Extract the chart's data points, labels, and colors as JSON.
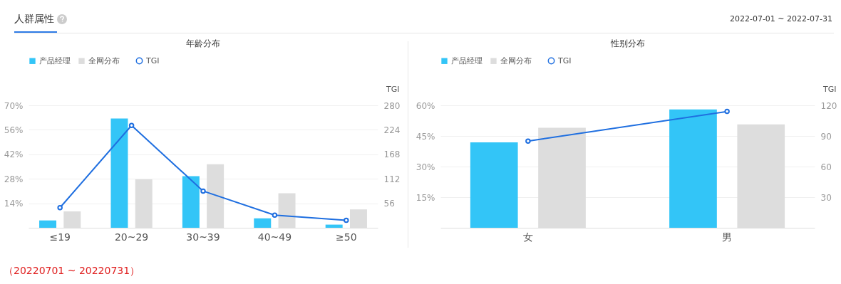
{
  "chart_data": [
    {
      "type": "bar",
      "title": "年龄分布",
      "categories": [
        "≤19",
        "20~29",
        "30~39",
        "40~49",
        "≥50"
      ],
      "series": [
        {
          "name": "产品经理",
          "color": "#33c5f7",
          "values": [
            4.2,
            62.5,
            29.5,
            5.4,
            1.8
          ]
        },
        {
          "name": "全网分布",
          "color": "#dddddd",
          "values": [
            9.4,
            27.7,
            36.3,
            19.7,
            10.5
          ]
        },
        {
          "name": "TGI",
          "type": "line",
          "axis": "y2",
          "color": "#1f6fe0",
          "values": [
            46,
            234,
            84,
            29,
            17
          ]
        }
      ],
      "ylim": [
        0,
        70
      ],
      "yticks": [
        {
          "value": 14,
          "label": "14%"
        },
        {
          "value": 28,
          "label": "28%"
        },
        {
          "value": 42,
          "label": "42%"
        },
        {
          "value": 56,
          "label": "56%"
        },
        {
          "value": 70,
          "label": "70%"
        }
      ],
      "y2lim": [
        0,
        280
      ],
      "y2ticks": [
        56,
        112,
        168,
        224,
        280
      ],
      "y2label": "TGI",
      "grid": "y",
      "legend": "top left",
      "marker": "circle",
      "annotations": [
        "人群属性",
        "2022-07-01 ~ 2022-07-31",
        "（20220701 ~ 20220731）"
      ]
    },
    {
      "type": "bar",
      "title": "性别分布",
      "categories": [
        "女",
        "男"
      ],
      "series": [
        {
          "name": "产品经理",
          "color": "#33c5f7",
          "values": [
            41.9,
            58
          ]
        },
        {
          "name": "全网分布",
          "color": "#dddddd",
          "values": [
            49,
            50.7
          ]
        },
        {
          "name": "TGI",
          "type": "line",
          "axis": "y2",
          "color": "#1f6fe0",
          "values": [
            85,
            114
          ]
        }
      ],
      "ylim": [
        0,
        60
      ],
      "yticks": [
        {
          "value": 15,
          "label": "15%"
        },
        {
          "value": 30,
          "label": "30%"
        },
        {
          "value": 45,
          "label": "45%"
        },
        {
          "value": 60,
          "label": "60%"
        }
      ],
      "y2lim": [
        0,
        120
      ],
      "y2ticks": [
        30,
        60,
        90,
        120
      ],
      "y2label": "TGI",
      "grid": "y",
      "legend": "top left",
      "marker": "circle"
    }
  ]
}
